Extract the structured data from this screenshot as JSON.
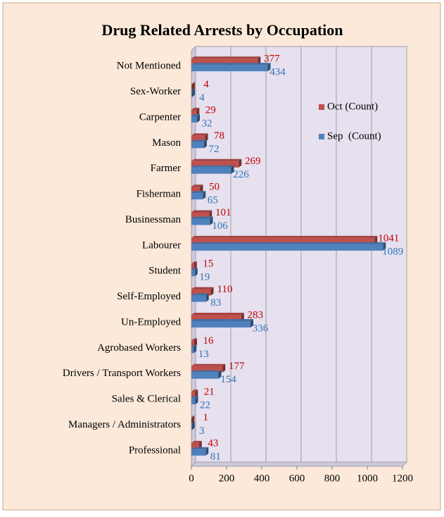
{
  "chart_data": {
    "type": "bar",
    "orientation": "horizontal",
    "title": "Drug Related Arrests by Occupation",
    "categories": [
      "Not Mentioned",
      "Sex-Worker",
      "Carpenter",
      "Mason",
      "Farmer",
      "Fisherman",
      "Businessman",
      "Labourer",
      "Student",
      "Self-Employed",
      "Un-Employed",
      "Agrobased Workers",
      "Drivers / Transport Workers",
      "Sales & Clerical",
      "Managers / Administrators",
      "Professional"
    ],
    "series": [
      {
        "name": "Oct (Count)",
        "color": "#c0504d",
        "values": [
          377,
          4,
          29,
          78,
          269,
          50,
          101,
          1041,
          15,
          110,
          283,
          16,
          177,
          21,
          1,
          43
        ]
      },
      {
        "name": "Sep  (Count)",
        "color": "#4f81bd",
        "values": [
          434,
          4,
          32,
          72,
          226,
          65,
          106,
          1089,
          19,
          83,
          336,
          13,
          154,
          22,
          3,
          81
        ]
      }
    ],
    "xlim": [
      0,
      1200
    ],
    "xticks": [
      0,
      200,
      400,
      600,
      800,
      1000,
      1200
    ],
    "grid": true,
    "legend": "right"
  }
}
